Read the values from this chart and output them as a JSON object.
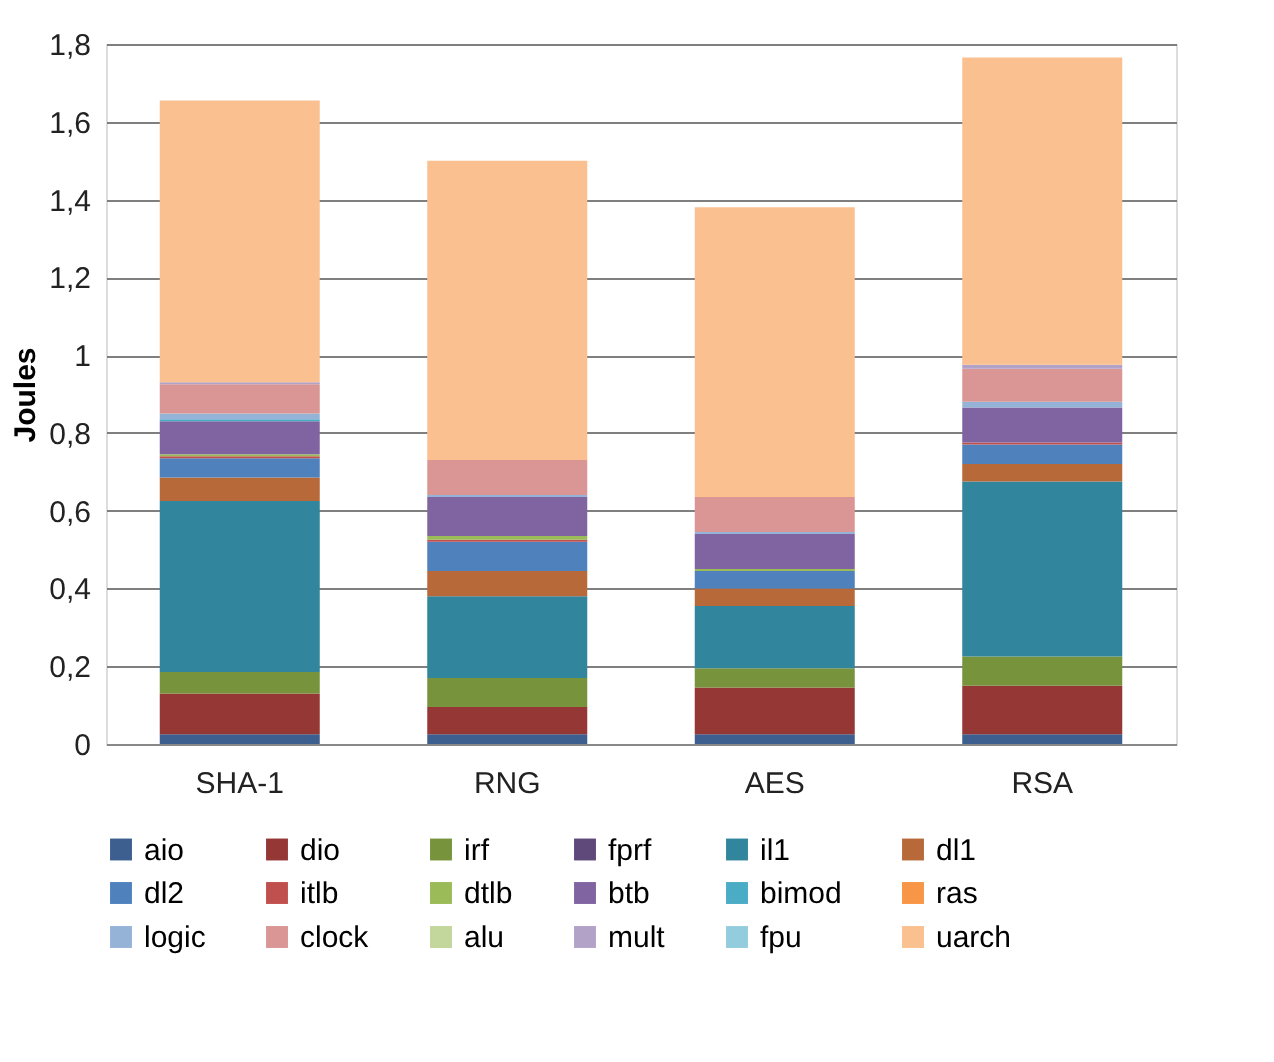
{
  "chart_data": {
    "type": "bar",
    "stacked": true,
    "ylabel": "Joules",
    "categories": [
      "SHA-1",
      "RNG",
      "AES",
      "RSA"
    ],
    "ylim": [
      0,
      1.8
    ],
    "yticks": [
      0,
      {
        "value": 0.2,
        "label": "0,2"
      },
      {
        "value": 0.4,
        "label": "0,4"
      },
      {
        "value": 0.6,
        "label": "0,6"
      },
      {
        "value": 0.8,
        "label": "0,8"
      },
      1,
      {
        "value": 1.2,
        "label": "1,2"
      },
      {
        "value": 1.4,
        "label": "1,4"
      },
      {
        "value": 1.6,
        "label": "1,6"
      },
      {
        "value": 1.8,
        "label": "1,8"
      }
    ],
    "grid": "y",
    "legend": "bottom",
    "series": [
      {
        "name": "aio",
        "color": "#3c5f8f",
        "values": [
          0.025,
          0.025,
          0.025,
          0.025
        ]
      },
      {
        "name": "dio",
        "color": "#953735",
        "values": [
          0.105,
          0.07,
          0.12,
          0.125
        ]
      },
      {
        "name": "irf",
        "color": "#77933c",
        "values": [
          0.055,
          0.075,
          0.05,
          0.075
        ]
      },
      {
        "name": "fprf",
        "color": "#5f497a",
        "values": [
          0,
          0,
          0,
          0
        ]
      },
      {
        "name": "il1",
        "color": "#31859c",
        "values": [
          0.44,
          0.21,
          0.16,
          0.45
        ]
      },
      {
        "name": "dl1",
        "color": "#b8693a",
        "values": [
          0.06,
          0.065,
          0.045,
          0.045
        ]
      },
      {
        "name": "dl2",
        "color": "#4f81bd",
        "values": [
          0.05,
          0.075,
          0.045,
          0.05
        ]
      },
      {
        "name": "itlb",
        "color": "#c0504d",
        "values": [
          0.005,
          0.005,
          0,
          0.005
        ]
      },
      {
        "name": "dtlb",
        "color": "#9bbb59",
        "values": [
          0.005,
          0.01,
          0.005,
          0
        ]
      },
      {
        "name": "btb",
        "color": "#8064a2",
        "values": [
          0.085,
          0.1,
          0.09,
          0.09
        ]
      },
      {
        "name": "bimod",
        "color": "#4bacc6",
        "values": [
          0.005,
          0,
          0,
          0
        ]
      },
      {
        "name": "ras",
        "color": "#f79646",
        "values": [
          0,
          0,
          0,
          0
        ]
      },
      {
        "name": "logic",
        "color": "#95b3d7",
        "values": [
          0.015,
          0.005,
          0.005,
          0.015
        ]
      },
      {
        "name": "clock",
        "color": "#d99694",
        "values": [
          0.075,
          0.09,
          0.09,
          0.085
        ]
      },
      {
        "name": "alu",
        "color": "#c3d69b",
        "values": [
          0,
          0,
          0,
          0
        ]
      },
      {
        "name": "mult",
        "color": "#b3a2c7",
        "values": [
          0.005,
          0,
          0,
          0.01
        ]
      },
      {
        "name": "fpu",
        "color": "#93cddd",
        "values": [
          0,
          0,
          0,
          0
        ]
      },
      {
        "name": "uarch",
        "color": "#fac090",
        "values": [
          0.725,
          0.77,
          0.745,
          0.79
        ]
      }
    ]
  }
}
